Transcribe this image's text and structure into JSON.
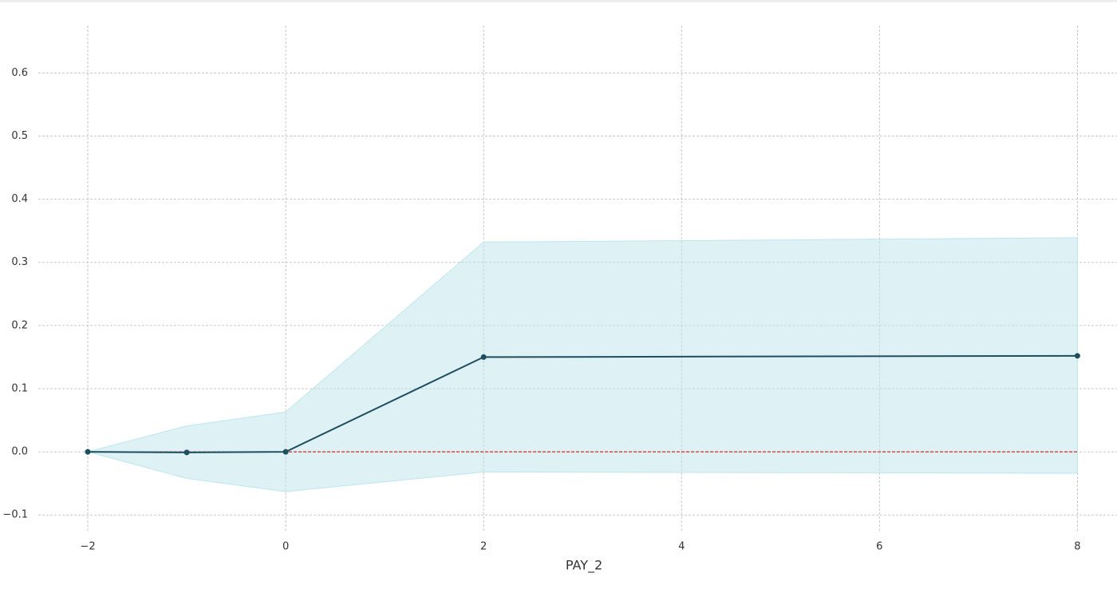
{
  "chart_data": {
    "type": "line",
    "x_label": "PAY_2",
    "x": [
      -2,
      -1,
      0,
      2,
      8
    ],
    "series": [
      {
        "color": "#1f4e5f",
        "values": [
          0,
          -0.001,
          0.0,
          0.15,
          0.152
        ]
      }
    ],
    "band": {
      "color": "#bde5ee",
      "upper": [
        0,
        0.041,
        0.063,
        0.332,
        0.339
      ],
      "lower": [
        0,
        -0.042,
        -0.063,
        -0.032,
        -0.034
      ]
    },
    "reference_line": {
      "value": 0,
      "color": "#d62728"
    },
    "xlim": [
      -2.5,
      8.4
    ],
    "ylim": [
      -0.125,
      0.675
    ],
    "xticks": [
      {
        "value": -2,
        "label": "−2"
      },
      0,
      2,
      4,
      6,
      8
    ],
    "yticks": [
      {
        "value": -0.1,
        "label": "−0.1"
      },
      {
        "value": 0,
        "label": "0.0"
      },
      0.1,
      0.2,
      0.3,
      0.4,
      0.5,
      0.6
    ],
    "grid": true
  }
}
